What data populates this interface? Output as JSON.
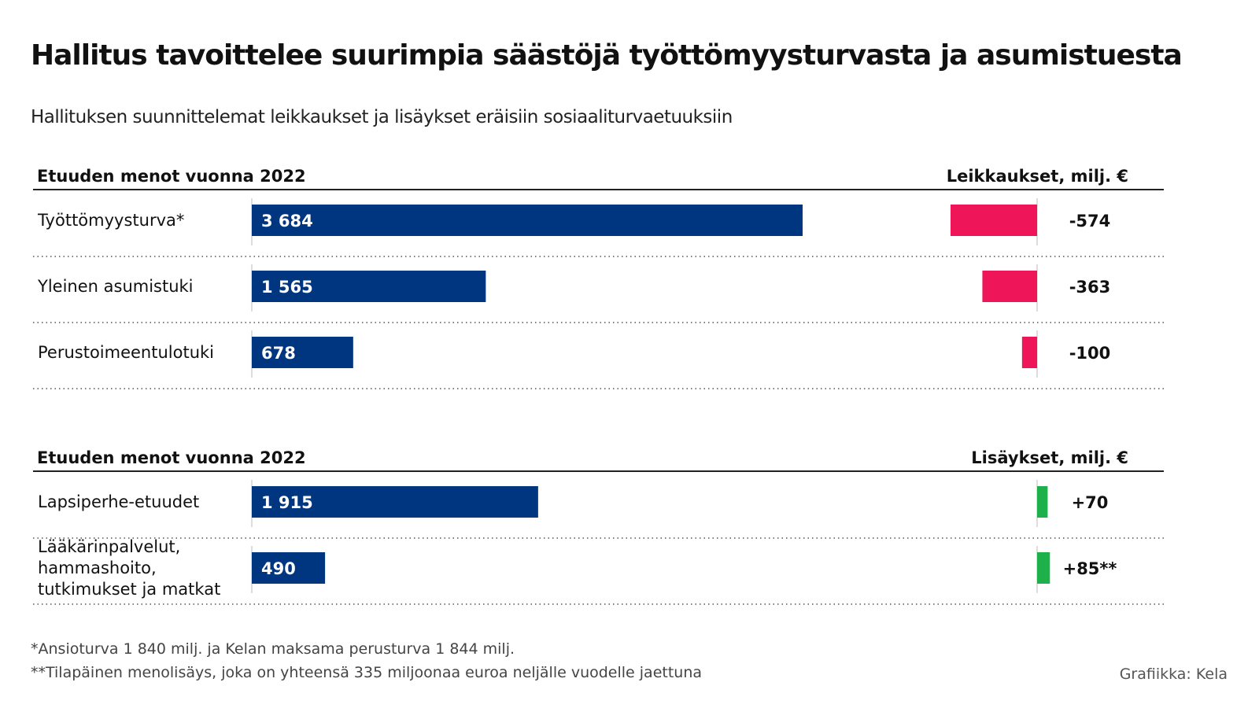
{
  "title": "Hallitus tavoittelee suurimpia säästöjä työttömyysturvasta ja asumistuesta",
  "subtitle": "Hallituksen suunnittelemat leikkaukset ja lisäykset eräisiin sosiaaliturvaetuuksiin",
  "colors": {
    "bar": "#003580",
    "cut": "#ee1659",
    "increase": "#1db04b",
    "rule": "#222222",
    "dotted": "#555555"
  },
  "chart_data": [
    {
      "type": "bar",
      "left_header": "Etuuden menot vuonna 2022",
      "right_header": "Leikkaukset, milj. €",
      "rows": [
        {
          "category": [
            "Työttömyysturva*"
          ],
          "value": 3684,
          "value_label": "3 684",
          "change": -574,
          "change_label": "-574"
        },
        {
          "category": [
            "Yleinen asumistuki"
          ],
          "value": 1565,
          "value_label": "1 565",
          "change": -363,
          "change_label": "-363"
        },
        {
          "category": [
            "Perustoimeentulotuki"
          ],
          "value": 678,
          "value_label": "678",
          "change": -100,
          "change_label": "-100"
        }
      ]
    },
    {
      "type": "bar",
      "left_header": "Etuuden menot vuonna 2022",
      "right_header": "Lisäykset, milj. €",
      "rows": [
        {
          "category": [
            "Lapsiperhe-etuudet"
          ],
          "value": 1915,
          "value_label": "1 915",
          "change": 70,
          "change_label": "+70"
        },
        {
          "category": [
            "Lääkärinpalvelut,",
            "hammashoito,",
            "tutkimukset ja matkat"
          ],
          "value": 490,
          "value_label": "490",
          "change": 85,
          "change_label": "+85**"
        }
      ]
    }
  ],
  "footnotes": [
    "*Ansioturva 1 840 milj. ja Kelan maksama perusturva 1 844 milj.",
    "**Tilapäinen menolisäys, joka on yhteensä 335 miljoonaa euroa neljälle vuodelle jaettuna"
  ],
  "source": "Grafiikka: Kela"
}
